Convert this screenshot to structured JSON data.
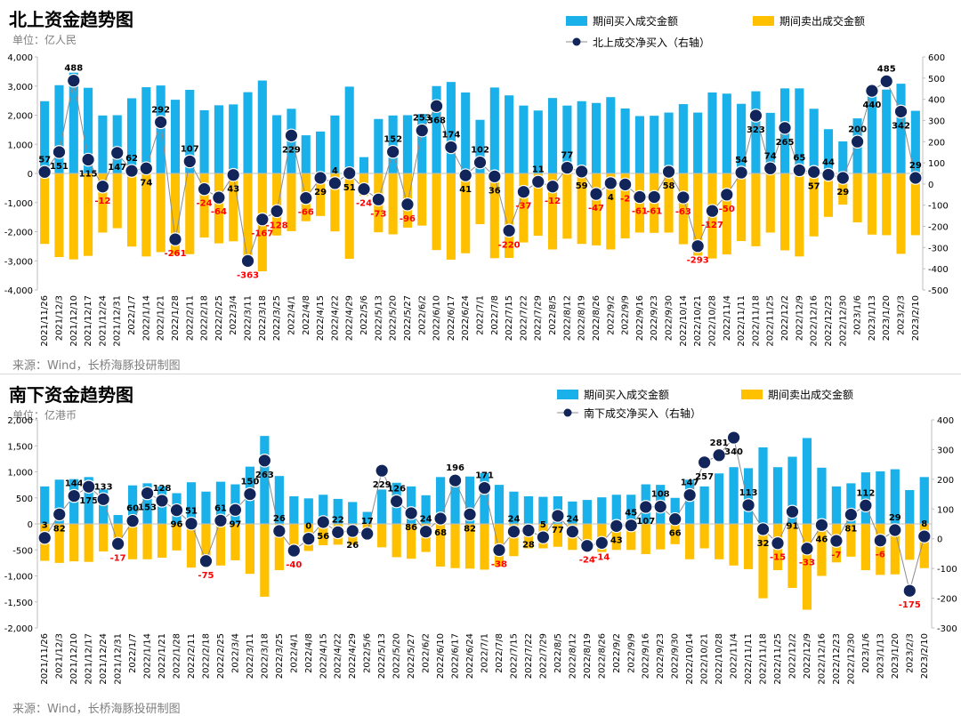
{
  "charts": [
    {
      "title": "北上资金趋势图",
      "unit": "单位：亿人民",
      "source": "来源：Wind，长桥海豚投研制图",
      "legend": [
        "期间买入成交金额",
        "期间卖出成交金额",
        "北上成交净买入（右轴）"
      ],
      "left_ticks": [
        "4,000",
        "3,000",
        "2,000",
        "1,000",
        "0",
        "-1,000",
        "-2,000",
        "-3,000",
        "-4,000"
      ],
      "right_ticks": [
        "600",
        "500",
        "400",
        "300",
        "200",
        "100",
        "0",
        "-100",
        "-200",
        "-300",
        "-400",
        "-500"
      ]
    },
    {
      "title": "南下资金趋势图",
      "unit": "单位：亿港币",
      "source": "来源：Wind，长桥海豚投研制图",
      "legend": [
        "期间买入成交金额",
        "期间卖出成交金额",
        "南下成交净买入（右轴）"
      ],
      "left_ticks": [
        "2,000",
        "1,500",
        "1,000",
        "500",
        "0",
        "-500",
        "-1,000",
        "-1,500",
        "-2,000"
      ],
      "right_ticks": [
        "400",
        "300",
        "200",
        "100",
        "0",
        "-100",
        "-200",
        "-300"
      ]
    }
  ],
  "colors": {
    "buy": "#1ab0ea",
    "sell": "#ffc000",
    "net": "#12255a",
    "label_pos": "#000000",
    "label_neg": "#ff0000"
  },
  "chart_data": [
    {
      "type": "bar",
      "title": "北上资金趋势图",
      "ylabel": "亿人民",
      "ylim": [
        -4000,
        4000
      ],
      "y2lim": [
        -500,
        600
      ],
      "categories": [
        "2021/11/26",
        "2021/12/3",
        "2021/12/10",
        "2021/12/17",
        "2021/12/24",
        "2021/12/31",
        "2022/1/7",
        "2022/1/14",
        "2022/1/21",
        "2022/1/28",
        "2022/2/11",
        "2022/2/18",
        "2022/2/25",
        "2022/3/4",
        "2022/3/11",
        "2022/3/18",
        "2022/3/25",
        "2022/4/1",
        "2022/4/8",
        "2022/4/15",
        "2022/4/22",
        "2022/4/29",
        "2022/5/6",
        "2022/5/13",
        "2022/5/20",
        "2022/5/27",
        "2022/6/2",
        "2022/6/10",
        "2022/6/17",
        "2022/6/24",
        "2022/7/1",
        "2022/7/8",
        "2022/7/15",
        "2022/7/22",
        "2022/7/29",
        "2022/8/5",
        "2022/8/12",
        "2022/8/19",
        "2022/8/26",
        "2022/9/2",
        "2022/9/9",
        "2022/9/16",
        "2022/9/23",
        "2022/9/30",
        "2022/10/14",
        "2022/10/21",
        "2022/10/28",
        "2022/11/4",
        "2022/11/11",
        "2022/11/18",
        "2022/11/25",
        "2022/12/2",
        "2022/12/9",
        "2022/12/16",
        "2022/12/23",
        "2022/12/30",
        "2023/1/6",
        "2023/1/13",
        "2023/1/20",
        "2023/2/3",
        "2023/2/10"
      ],
      "x_tick_labels": [
        "2021/11/26",
        "2021/12/3",
        "2021/12/10",
        "2021/12/17",
        "2021/12/24",
        "2021/12/31",
        "2022/1/7",
        "2022/1/14",
        "2022/1/21",
        "2022/1/28",
        "2022/2/11",
        "2022/2/18",
        "2022/2/25",
        "2022/3/4",
        "2022/3/11",
        "2022/3/18",
        "2022/3/25",
        "2022/4/1",
        "2022/4/8",
        "2022/4/15",
        "2022/4/22",
        "2022/4/29",
        "2022/5/6",
        "2022/5/13",
        "2022/5/20",
        "2022/5/27",
        "2022/6/2",
        "2022/6/10",
        "2022/6/17",
        "2022/6/24",
        "2022/7/1",
        "2022/7/8",
        "2022/7/15",
        "2022/7/22",
        "2022/7/29",
        "2022/8/5",
        "2022/8/12",
        "2022/8/19",
        "2022/8/26",
        "2022/9/2",
        "2022/9/9",
        "2022/9/16",
        "2022/9/23",
        "2022/9/30",
        "2022/10/14",
        "2022/10/21",
        "2022/10/28",
        "2022/11/4",
        "2022/11/11",
        "2022/11/18",
        "2022/11/25",
        "2022/12/2",
        "2022/12/9",
        "2022/12/16",
        "2022/12/23",
        "2022/12/30",
        "2023/1/6",
        "2023/1/13",
        "2023/1/20",
        "2023/2/3",
        "2023/2/10"
      ],
      "series": [
        {
          "name": "期间买入成交金额",
          "axis": "left",
          "values": [
            2480,
            3030,
            3460,
            2940,
            1990,
            2000,
            2580,
            2960,
            3020,
            2530,
            2870,
            2170,
            2340,
            2370,
            2790,
            3190,
            2000,
            2220,
            1310,
            1440,
            1990,
            2980,
            560,
            1870,
            1990,
            2000,
            2040,
            3000,
            3140,
            2780,
            1840,
            2950,
            2680,
            2330,
            2160,
            2590,
            2330,
            2480,
            2420,
            2620,
            2230,
            1970,
            1980,
            2090,
            2380,
            2090,
            2780,
            2740,
            2390,
            2820,
            2080,
            2920,
            2920,
            2220,
            1520,
            1100,
            1890,
            2900,
            2880,
            3080,
            2150
          ]
        },
        {
          "name": "期间卖出成交金额",
          "axis": "left",
          "values": [
            -2420,
            -2870,
            -2950,
            -2830,
            -2030,
            -1880,
            -2510,
            -2850,
            -2700,
            -2790,
            -2770,
            -2200,
            -2400,
            -2330,
            -3160,
            -3360,
            -2130,
            -1980,
            -1640,
            -1460,
            -1990,
            -2930,
            -770,
            -2020,
            -2090,
            -1860,
            -1790,
            -2630,
            -2960,
            -2740,
            -1740,
            -2910,
            -2900,
            -2370,
            -2140,
            -2610,
            -2240,
            -2420,
            -2470,
            -2610,
            -2230,
            -2030,
            -2040,
            -2030,
            -2430,
            -2820,
            -2920,
            -2780,
            -2320,
            -2500,
            -2030,
            -2640,
            -2850,
            -2160,
            -1490,
            -1070,
            -1680,
            -2100,
            -2120,
            -2760,
            -2120
          ]
        },
        {
          "name": "北上成交净买入（右轴）",
          "axis": "right",
          "values": [
            57,
            151,
            488,
            115,
            -12,
            147,
            62,
            74,
            292,
            -261,
            107,
            -24,
            -64,
            43,
            -363,
            -167,
            -128,
            229,
            -66,
            29,
            4,
            51,
            -24,
            -73,
            152,
            -96,
            253,
            368,
            174,
            41,
            102,
            36,
            -220,
            -37,
            11,
            -12,
            77,
            59,
            -47,
            4,
            -2,
            -61,
            -61,
            58,
            -63,
            -293,
            -127,
            -50,
            54,
            323,
            74,
            265,
            65,
            57,
            44,
            29,
            200,
            440,
            485,
            342,
            29
          ]
        }
      ]
    },
    {
      "type": "bar",
      "title": "南下资金趋势图",
      "ylabel": "亿港币",
      "ylim": [
        -2000,
        2000
      ],
      "y2lim": [
        -300,
        400
      ],
      "categories": [
        "2021/11/26",
        "2021/12/3",
        "2021/12/10",
        "2021/12/17",
        "2021/12/24",
        "2021/12/31",
        "2022/1/7",
        "2022/1/14",
        "2022/1/21",
        "2022/1/28",
        "2022/2/11",
        "2022/2/18",
        "2022/2/25",
        "2022/3/4",
        "2022/3/11",
        "2022/3/18",
        "2022/3/25",
        "2022/4/1",
        "2022/4/8",
        "2022/4/15",
        "2022/4/22",
        "2022/4/29",
        "2022/5/6",
        "2022/5/13",
        "2022/5/20",
        "2022/5/27",
        "2022/6/2",
        "2022/6/10",
        "2022/6/17",
        "2022/6/24",
        "2022/7/1",
        "2022/7/8",
        "2022/7/15",
        "2022/7/22",
        "2022/7/29",
        "2022/8/5",
        "2022/8/12",
        "2022/8/19",
        "2022/8/26",
        "2022/9/2",
        "2022/9/9",
        "2022/9/16",
        "2022/9/23",
        "2022/9/30",
        "2022/10/14",
        "2022/10/21",
        "2022/10/28",
        "2022/11/4",
        "2022/11/11",
        "2022/11/18",
        "2022/11/25",
        "2022/12/2",
        "2022/12/9",
        "2022/12/16",
        "2022/12/23",
        "2022/12/30",
        "2023/1/6",
        "2023/1/13",
        "2023/1/20",
        "2023/2/3",
        "2023/2/10"
      ],
      "x_tick_labels": [
        "2021/11/26",
        "2021/12/3",
        "2021/12/10",
        "2021/12/17",
        "2021/12/24",
        "2021/12/31",
        "2022/1/7",
        "2022/1/14",
        "2022/1/21",
        "2022/1/28",
        "2022/2/11",
        "2022/2/18",
        "2022/2/25",
        "2022/3/4",
        "2022/3/11",
        "2022/3/18",
        "2022/3/25",
        "2022/4/1",
        "2022/4/8",
        "2022/4/15",
        "2022/4/22",
        "2022/4/29",
        "2022/5/6",
        "2022/5/13",
        "2022/5/20",
        "2022/5/27",
        "2022/6/2",
        "2022/6/10",
        "2022/6/17",
        "2022/6/24",
        "2022/7/1",
        "2022/7/8",
        "2022/7/15",
        "2022/7/22",
        "2022/7/29",
        "2022/8/5",
        "2022/8/12",
        "2022/8/19",
        "2022/8/26",
        "2022/9/2",
        "2022/9/9",
        "2022/9/16",
        "2022/9/23",
        "2022/9/30",
        "2022/10/14",
        "2022/10/21",
        "2022/10/28",
        "2022/11/4",
        "2022/11/11",
        "2022/11/18",
        "2022/11/25",
        "2022/12/2",
        "2022/12/9",
        "2022/12/16",
        "2022/12/23",
        "2022/12/30",
        "2023/1/6",
        "2023/1/13",
        "2023/1/20",
        "2023/2/3",
        "2023/2/10"
      ],
      "series": [
        {
          "name": "期间买入成交金额",
          "axis": "left",
          "values": [
            720,
            850,
            860,
            900,
            660,
            170,
            740,
            780,
            720,
            590,
            800,
            620,
            810,
            760,
            1100,
            1690,
            920,
            530,
            490,
            560,
            480,
            420,
            230,
            660,
            790,
            720,
            550,
            900,
            930,
            910,
            980,
            750,
            620,
            530,
            520,
            530,
            430,
            460,
            510,
            560,
            560,
            760,
            750,
            500,
            850,
            720,
            970,
            1090,
            1070,
            1470,
            1090,
            1290,
            1650,
            1080,
            720,
            780,
            990,
            1010,
            1050,
            650,
            900
          ]
        },
        {
          "name": "期间卖出成交金额",
          "axis": "left",
          "values": [
            -710,
            -750,
            -720,
            -730,
            -530,
            -400,
            -680,
            -680,
            -650,
            -510,
            -840,
            -710,
            -800,
            -700,
            -960,
            -1400,
            -890,
            -600,
            -520,
            -410,
            -400,
            -400,
            -230,
            -450,
            -640,
            -670,
            -540,
            -820,
            -850,
            -860,
            -880,
            -820,
            -620,
            -470,
            -470,
            -440,
            -500,
            -520,
            -540,
            -500,
            -500,
            -580,
            -490,
            -390,
            -680,
            -470,
            -680,
            -800,
            -870,
            -1430,
            -890,
            -1230,
            -1650,
            -1000,
            -740,
            -630,
            -890,
            -980,
            -970,
            -690,
            -850
          ]
        },
        {
          "name": "南下成交净买入（右轴）",
          "axis": "right",
          "values": [
            3,
            82,
            144,
            175,
            133,
            -17,
            60,
            153,
            128,
            96,
            51,
            -75,
            61,
            97,
            150,
            263,
            26,
            -40,
            0,
            56,
            22,
            26,
            17,
            229,
            126,
            86,
            24,
            68,
            196,
            82,
            171,
            -38,
            24,
            28,
            5,
            77,
            24,
            -24,
            -14,
            43,
            45,
            107,
            108,
            66,
            147,
            257,
            281,
            340,
            113,
            32,
            -15,
            91,
            -33,
            46,
            -7,
            81,
            112,
            -6,
            29,
            -175,
            8
          ]
        }
      ]
    }
  ]
}
